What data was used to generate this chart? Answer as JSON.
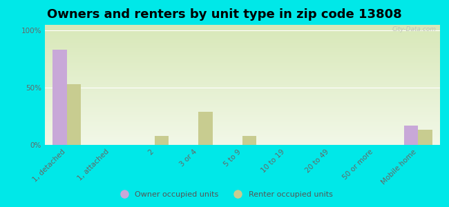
{
  "title": "Owners and renters by unit type in zip code 13808",
  "categories": [
    "1, detached",
    "1, attached",
    "2",
    "3 or 4",
    "5 to 9",
    "10 to 19",
    "20 to 49",
    "50 or more",
    "Mobile home"
  ],
  "owner_values": [
    83,
    0,
    0,
    0,
    0,
    0,
    0,
    0,
    17
  ],
  "renter_values": [
    53,
    0,
    8,
    29,
    8,
    0,
    0,
    0,
    13
  ],
  "owner_color": "#c8a8d8",
  "renter_color": "#c8cc90",
  "background_color": "#00e8e8",
  "grad_top": "#d8e8b8",
  "grad_bottom": "#f2f8e8",
  "yticks": [
    0,
    50,
    100
  ],
  "ytick_labels": [
    "0%",
    "50%",
    "100%"
  ],
  "ylim": [
    0,
    105
  ],
  "watermark": "City-Data.com",
  "legend_owner": "Owner occupied units",
  "legend_renter": "Renter occupied units",
  "title_fontsize": 13,
  "tick_fontsize": 7.5,
  "bar_width": 0.32
}
